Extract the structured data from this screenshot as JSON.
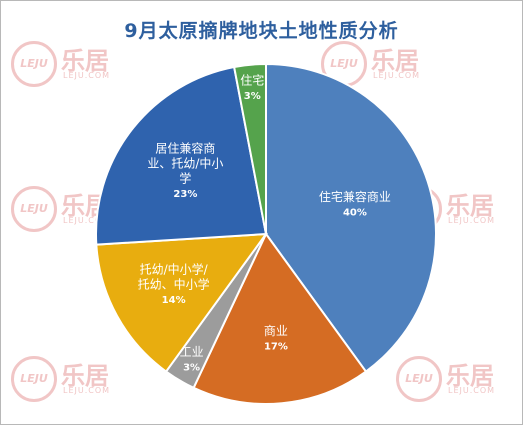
{
  "chart_data": {
    "type": "pie",
    "title": "9月太原摘牌地块土地性质分析",
    "slices": [
      {
        "label_lines": [
          "住宅兼容商业"
        ],
        "value": 40,
        "pct_label": "40%",
        "color": "#4e80bd"
      },
      {
        "label_lines": [
          "商业"
        ],
        "value": 17,
        "pct_label": "17%",
        "color": "#d56c23"
      },
      {
        "label_lines": [
          "工业"
        ],
        "value": 3,
        "pct_label": "3%",
        "color": "#9c9c9c"
      },
      {
        "label_lines": [
          "托幼/中小学/",
          "托幼、中小学"
        ],
        "value": 14,
        "pct_label": "14%",
        "color": "#e8ad0f"
      },
      {
        "label_lines": [
          "居住兼容商",
          "业、托幼/中小",
          "学"
        ],
        "value": 23,
        "pct_label": "23%",
        "color": "#2f63ae"
      },
      {
        "label_lines": [
          "住宅"
        ],
        "value": 3,
        "pct_label": "3%",
        "color": "#55a34c"
      }
    ]
  },
  "watermark": {
    "brand": "乐居",
    "logo_text": "LEJU",
    "sub_text": "LEJU.COM"
  }
}
